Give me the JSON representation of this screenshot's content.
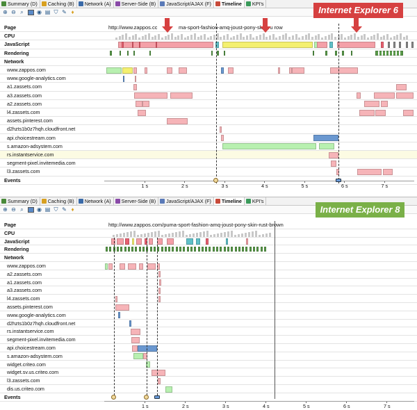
{
  "tabs": [
    {
      "label": "Summary (D)",
      "icon": "summary-icon",
      "color": "#4a8a3a"
    },
    {
      "label": "Caching (B)",
      "icon": "caching-icon",
      "color": "#d8a020"
    },
    {
      "label": "Network (A)",
      "icon": "network-icon",
      "color": "#3a6aa8"
    },
    {
      "label": "Server-Side (B)",
      "icon": "server-side-icon",
      "color": "#8a4aa8"
    },
    {
      "label": "JavaScript/AJAX (F)",
      "icon": "javascript-icon",
      "color": "#5a7ab8"
    },
    {
      "label": "Timeline",
      "icon": "timeline-icon",
      "color": "#c84a3a"
    },
    {
      "label": "KPI's",
      "icon": "kpi-icon",
      "color": "#3a9a5a"
    }
  ],
  "panels": [
    {
      "browser_label": "Internet Explorer 6",
      "url": "http://www.zappos.com/puma-sport-fashion-amq-joust-pony-skin-rust-brown",
      "url_visible_head": "http://www.zappos.com",
      "url_visible_tail": "ma-sport-fashion-amq-joust-pony-skin-ru     rown",
      "rows": [
        {
          "label": "Page",
          "bold": true
        },
        {
          "label": "CPU",
          "bold": true
        },
        {
          "label": "JavaScript",
          "bold": true
        },
        {
          "label": "Rendering",
          "bold": true
        },
        {
          "label": "Network",
          "bold": true
        },
        {
          "label": "www.zappos.com"
        },
        {
          "label": "www.google-analytics.com"
        },
        {
          "label": "a1.zassets.com"
        },
        {
          "label": "a3.zassets.com"
        },
        {
          "label": "a2.zassets.com"
        },
        {
          "label": "l4.zassets.com"
        },
        {
          "label": "assets.pinterest.com"
        },
        {
          "label": "d2hzts1b0z7hqh.cloudfront.net"
        },
        {
          "label": "api.choicestream.com"
        },
        {
          "label": "s.amazon-adsystem.com"
        },
        {
          "label": "rs.instantservice.com",
          "highlight": true
        },
        {
          "label": "segment-pixel.invitemedia.com"
        },
        {
          "label": "l3.zassets.com"
        },
        {
          "label": "Events",
          "bold": true
        }
      ],
      "ticks": [
        "1 s",
        "2 s",
        "3 s",
        "4 s",
        "5 s",
        "6 s",
        "7 s"
      ]
    },
    {
      "browser_label": "Internet Explorer 8",
      "url": "http://www.zappos.com/puma-sport-fashion-amq-joust-pony-skin-rust-brown",
      "rows": [
        {
          "label": "Page",
          "bold": true
        },
        {
          "label": "CPU",
          "bold": true
        },
        {
          "label": "JavaScript",
          "bold": true
        },
        {
          "label": "Rendering",
          "bold": true
        },
        {
          "label": "Network",
          "bold": true
        },
        {
          "label": "www.zappos.com"
        },
        {
          "label": "a2.zassets.com"
        },
        {
          "label": "a1.zassets.com"
        },
        {
          "label": "a3.zassets.com"
        },
        {
          "label": "l4.zassets.com"
        },
        {
          "label": "assets.pinterest.com"
        },
        {
          "label": "www.google-analytics.com"
        },
        {
          "label": "d2hzts1b0z7hqh.cloudfront.net"
        },
        {
          "label": "rs.instantservice.com"
        },
        {
          "label": "segment-pixel.invitemedia.com"
        },
        {
          "label": "api.choicestream.com"
        },
        {
          "label": "s.amazon-adsystem.com"
        },
        {
          "label": "widget.criteo.com"
        },
        {
          "label": "widget.sv.us.criteo.com"
        },
        {
          "label": "l3.zassets.com"
        },
        {
          "label": "dis.us.criteo.com"
        },
        {
          "label": "Events",
          "bold": true
        }
      ],
      "ticks": [
        "1 s",
        "2 s",
        "3 s",
        "4 s",
        "5 s",
        "6 s",
        "7 s"
      ]
    }
  ],
  "colors": {
    "script": "#f4a0a8",
    "script_strong": "#e86070",
    "ajax_yellow": "#f4f070",
    "render_green": "#5a9a4a",
    "net_green": "#b8f0b0",
    "net_pink": "#f6b4b8",
    "net_blue": "#6a98d0",
    "teal": "#60c0c8",
    "label_red": "#d64040",
    "label_green": "#7ab048"
  },
  "toolbar_icons": [
    "zoom-in-icon",
    "zoom-out-icon",
    "zoom-reset-icon",
    "view-timeline-icon",
    "view-table-icon",
    "copy-icon",
    "filter-icon",
    "magic-icon",
    "hint-icon"
  ]
}
